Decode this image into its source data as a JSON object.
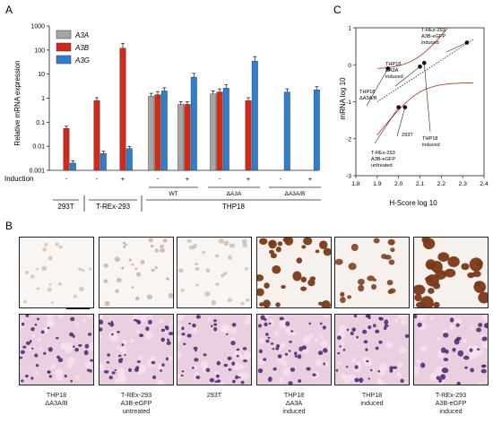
{
  "panel_labels": {
    "a": "A",
    "b": "B",
    "c": "C"
  },
  "chart_data": [
    {
      "type": "bar",
      "ylabel": "Relative mRNA expression",
      "yscale": "log",
      "ylim": [
        0.001,
        1000
      ],
      "yticks": [
        "0.001",
        "0.01",
        "0.1",
        "1",
        "10",
        "100",
        "1000"
      ],
      "legend": {
        "position": "top-left",
        "entries": [
          "A3A",
          "A3B",
          "A3G"
        ]
      },
      "colors": {
        "A3A": "#a6a6a6",
        "A3B": "#d12a1b",
        "A3G": "#2f7fd1"
      },
      "induction_label": "Induction",
      "groups": [
        {
          "induction": "-",
          "values": {
            "A3A": null,
            "A3B": 0.055,
            "A3G": 0.002
          }
        },
        {
          "induction": "-",
          "values": {
            "A3A": null,
            "A3B": 0.8,
            "A3G": 0.005
          }
        },
        {
          "induction": "+",
          "values": {
            "A3A": null,
            "A3B": 120,
            "A3G": 0.008
          }
        },
        {
          "induction": "-",
          "values": {
            "A3A": 1.2,
            "A3B": 1.4,
            "A3G": 2.0
          }
        },
        {
          "induction": "+",
          "values": {
            "A3A": 0.55,
            "A3B": 0.55,
            "A3G": 7.5
          }
        },
        {
          "induction": "-",
          "values": {
            "A3A": 1.5,
            "A3B": 1.8,
            "A3G": 2.6
          }
        },
        {
          "induction": "+",
          "values": {
            "A3A": null,
            "A3B": 0.8,
            "A3G": 35
          }
        },
        {
          "induction": "-",
          "values": {
            "A3A": null,
            "A3B": null,
            "A3G": 1.8
          }
        },
        {
          "induction": "+",
          "values": {
            "A3A": null,
            "A3B": null,
            "A3G": 2.2
          }
        }
      ],
      "subgroup_labels": [
        "WT",
        "ΔA3A",
        "ΔA3A/B"
      ],
      "cell_line_labels": [
        "293T",
        "T-REx-293",
        "THP18"
      ]
    },
    {
      "type": "scatter",
      "xlabel": "H-Score log 10",
      "ylabel": "mRNA log 10",
      "xlim": [
        1.8,
        2.4
      ],
      "ylim": [
        -3,
        1
      ],
      "xticks": [
        "1.8",
        "1.9",
        "2.0",
        "2.1",
        "2.2",
        "2.3",
        "2.4"
      ],
      "yticks": [
        "-3",
        "-2",
        "-1",
        "0",
        "1"
      ],
      "points": [
        {
          "x": 1.95,
          "y": -0.1,
          "label": [
            "THP18",
            "ΔA3A/B"
          ]
        },
        {
          "x": 2.0,
          "y": -1.15,
          "label": [
            "T-REx-293",
            "A3B-eGFP",
            "untreated"
          ]
        },
        {
          "x": 2.03,
          "y": -1.15,
          "label": [
            "293T"
          ]
        },
        {
          "x": 2.1,
          "y": -0.05,
          "label": [
            "THP18",
            "ΔA3A",
            "induced"
          ]
        },
        {
          "x": 2.12,
          "y": 0.05,
          "label": [
            "THP18",
            "induced"
          ]
        },
        {
          "x": 2.32,
          "y": 0.6,
          "label": [
            "T-REx-293",
            "A3B-eGFP",
            "induced"
          ]
        }
      ],
      "fit_line": true,
      "confidence_band": true
    }
  ],
  "micrographs": {
    "top_row": [
      "ihc-1",
      "ihc-2",
      "ihc-3",
      "ihc-4",
      "ihc-5",
      "ihc-6"
    ],
    "bottom_row": [
      "he-1",
      "he-2",
      "he-3",
      "he-4",
      "he-5",
      "he-6"
    ],
    "captions": [
      [
        "THP18",
        "ΔA3A/B"
      ],
      [
        "T-REx-293",
        "A3B-eGFP",
        "untreated"
      ],
      [
        "293T"
      ],
      [
        "THP18",
        "ΔA3A",
        "induced"
      ],
      [
        "THP18",
        "induced"
      ],
      [
        "T-REx-293",
        "A3B-eGFP",
        "induced"
      ]
    ]
  }
}
